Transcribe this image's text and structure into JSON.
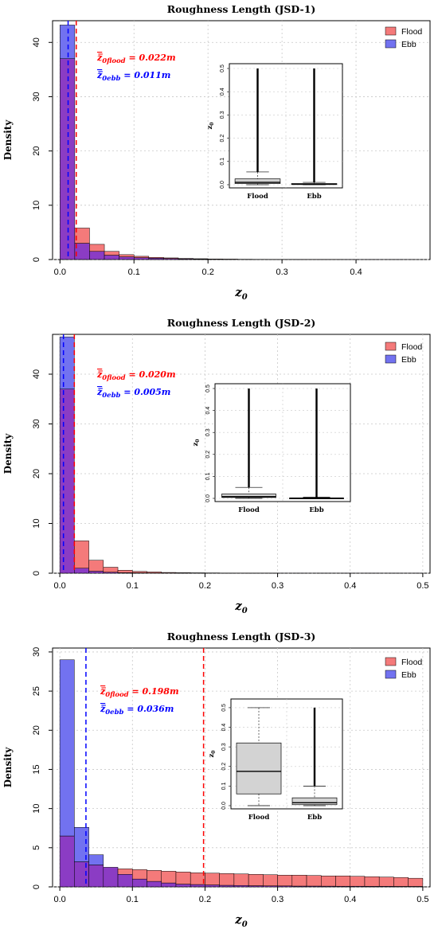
{
  "colors": {
    "flood_fill": "#f47a7a",
    "ebb_fill": "#7272f0",
    "overlap_fill": "#8b3cc4",
    "flood_line": "#ff0000",
    "ebb_line": "#0000ff",
    "grid": "#c8c8c8",
    "box_fill": "#d3d3d3"
  },
  "chart_data": [
    {
      "type": "bar",
      "title": "Roughness Length (JSD-1)",
      "xlabel": "z",
      "xlabel_sub": "0",
      "ylabel": "Density",
      "xlim": [
        -0.01,
        0.5
      ],
      "ylim": [
        0,
        44
      ],
      "xticks": [
        0.0,
        0.1,
        0.2,
        0.3,
        0.4
      ],
      "xtick_labels": [
        "0.0",
        "0.1",
        "0.2",
        "0.3",
        "0.4"
      ],
      "yticks": [
        0,
        10,
        20,
        30,
        40
      ],
      "ytick_labels": [
        "0",
        "10",
        "20",
        "30",
        "40"
      ],
      "grid": true,
      "legend_position": "top-right",
      "bin_width": 0.02,
      "series": [
        {
          "name": "Flood",
          "values": [
            37,
            5.8,
            2.8,
            1.5,
            0.9,
            0.6,
            0.4,
            0.3,
            0.2,
            0.15,
            0.1,
            0.08,
            0.05,
            0.04,
            0.03,
            0.03,
            0.02,
            0.02,
            0.02,
            0.01,
            0.01,
            0.01,
            0.01,
            0.01
          ]
        },
        {
          "name": "Ebb",
          "values": [
            43.2,
            3.0,
            1.5,
            0.8,
            0.5,
            0.35,
            0.25,
            0.18,
            0.12,
            0.08,
            0.06,
            0.05,
            0.04,
            0.03,
            0.02,
            0.02,
            0.01,
            0.01,
            0.01,
            0.01,
            0.01,
            0.01,
            0.01,
            0.01
          ]
        }
      ],
      "mean_lines": [
        {
          "series": "Flood",
          "x": 0.022
        },
        {
          "series": "Ebb",
          "x": 0.011
        }
      ],
      "annotations": [
        {
          "series": "Flood",
          "symbol": "z̅",
          "sub": "0flood",
          "text": " = 0.022m"
        },
        {
          "series": "Ebb",
          "symbol": "z̅",
          "sub": "0ebb",
          "text": " = 0.011m"
        }
      ],
      "inset": {
        "type": "box",
        "ylabel": "z",
        "ylabel_sub": "0",
        "categories": [
          "Flood",
          "Ebb"
        ],
        "ylim": [
          0,
          0.5
        ],
        "yticks": [
          0.0,
          0.1,
          0.2,
          0.3,
          0.4,
          0.5
        ],
        "ytick_labels": [
          "0.0",
          "0.1",
          "0.2",
          "0.3",
          "0.4",
          "0.5"
        ],
        "boxes": [
          {
            "q1": 0.005,
            "median": 0.01,
            "q3": 0.025,
            "whisker_low": 0.0,
            "whisker_high": 0.055,
            "outliers_from": 0.055,
            "outliers_to": 0.5
          },
          {
            "q1": 0.001,
            "median": 0.002,
            "q3": 0.005,
            "whisker_low": 0.0,
            "whisker_high": 0.01,
            "outliers_from": 0.01,
            "outliers_to": 0.5
          }
        ]
      }
    },
    {
      "type": "bar",
      "title": "Roughness Length (JSD-2)",
      "xlabel": "z",
      "xlabel_sub": "0",
      "ylabel": "Density",
      "xlim": [
        -0.01,
        0.51
      ],
      "ylim": [
        0,
        48
      ],
      "xticks": [
        0.0,
        0.1,
        0.2,
        0.3,
        0.4,
        0.5
      ],
      "xtick_labels": [
        "0.0",
        "0.1",
        "0.2",
        "0.3",
        "0.4",
        "0.5"
      ],
      "yticks": [
        0,
        10,
        20,
        30,
        40
      ],
      "ytick_labels": [
        "0",
        "10",
        "20",
        "30",
        "40"
      ],
      "grid": true,
      "legend_position": "top-right",
      "bin_width": 0.02,
      "series": [
        {
          "name": "Flood",
          "values": [
            37,
            6.5,
            2.6,
            1.2,
            0.6,
            0.35,
            0.25,
            0.15,
            0.1,
            0.08,
            0.06,
            0.04,
            0.03,
            0.02,
            0.02,
            0.01,
            0.01,
            0.01,
            0.01,
            0.01,
            0.01,
            0.01,
            0.01,
            0.01,
            0.01
          ]
        },
        {
          "name": "Ebb",
          "values": [
            47.5,
            1.0,
            0.4,
            0.2,
            0.1,
            0.08,
            0.05,
            0.04,
            0.03,
            0.02,
            0.02,
            0.01,
            0.01,
            0.01,
            0.01,
            0.01,
            0.01,
            0.01,
            0.01,
            0.01,
            0.01,
            0.01,
            0.01,
            0.01,
            0.01
          ]
        }
      ],
      "mean_lines": [
        {
          "series": "Flood",
          "x": 0.02
        },
        {
          "series": "Ebb",
          "x": 0.005
        }
      ],
      "annotations": [
        {
          "series": "Flood",
          "symbol": "z̅",
          "sub": "0flood",
          "text": " = 0.020m"
        },
        {
          "series": "Ebb",
          "symbol": "z̅",
          "sub": "0ebb",
          "text": " = 0.005m"
        }
      ],
      "inset": {
        "type": "box",
        "ylabel": "z",
        "ylabel_sub": "0",
        "categories": [
          "Flood",
          "Ebb"
        ],
        "ylim": [
          0,
          0.5
        ],
        "yticks": [
          0.0,
          0.1,
          0.2,
          0.3,
          0.4,
          0.5
        ],
        "ytick_labels": [
          "0.0",
          "0.1",
          "0.2",
          "0.3",
          "0.4",
          "0.5"
        ],
        "boxes": [
          {
            "q1": 0.004,
            "median": 0.008,
            "q3": 0.02,
            "whisker_low": 0.0,
            "whisker_high": 0.05,
            "outliers_from": 0.05,
            "outliers_to": 0.5
          },
          {
            "q1": 0.0,
            "median": 0.001,
            "q3": 0.002,
            "whisker_low": 0.0,
            "whisker_high": 0.005,
            "outliers_from": 0.005,
            "outliers_to": 0.5
          }
        ]
      }
    },
    {
      "type": "bar",
      "title": "Roughness Length (JSD-3)",
      "xlabel": "z",
      "xlabel_sub": "0",
      "ylabel": "Density",
      "xlim": [
        -0.01,
        0.51
      ],
      "ylim": [
        0,
        30.5
      ],
      "xticks": [
        0.0,
        0.1,
        0.2,
        0.3,
        0.4,
        0.5
      ],
      "xtick_labels": [
        "0.0",
        "0.1",
        "0.2",
        "0.3",
        "0.4",
        "0.5"
      ],
      "yticks": [
        0,
        5,
        10,
        15,
        20,
        25,
        30
      ],
      "ytick_labels": [
        "0",
        "5",
        "10",
        "15",
        "20",
        "25",
        "30"
      ],
      "grid": true,
      "legend_position": "top-right",
      "bin_width": 0.02,
      "series": [
        {
          "name": "Flood",
          "values": [
            6.5,
            3.2,
            2.8,
            2.5,
            2.3,
            2.2,
            2.1,
            2.0,
            1.9,
            1.8,
            1.75,
            1.7,
            1.65,
            1.6,
            1.55,
            1.5,
            1.5,
            1.45,
            1.4,
            1.4,
            1.35,
            1.3,
            1.25,
            1.2,
            1.1
          ]
        },
        {
          "name": "Ebb",
          "values": [
            29.0,
            7.6,
            4.1,
            2.5,
            1.6,
            1.0,
            0.7,
            0.5,
            0.35,
            0.3,
            0.25,
            0.2,
            0.18,
            0.15,
            0.13,
            0.12,
            0.1,
            0.1,
            0.09,
            0.08,
            0.08,
            0.07,
            0.07,
            0.06,
            0.06
          ]
        }
      ],
      "mean_lines": [
        {
          "series": "Flood",
          "x": 0.198
        },
        {
          "series": "Ebb",
          "x": 0.036
        }
      ],
      "annotations": [
        {
          "series": "Flood",
          "symbol": "z̅",
          "sub": "0flood",
          "text": " = 0.198m"
        },
        {
          "series": "Ebb",
          "symbol": "z̅",
          "sub": "0ebb",
          "text": " = 0.036m"
        }
      ],
      "inset": {
        "type": "box",
        "ylabel": "z",
        "ylabel_sub": "0",
        "categories": [
          "Flood",
          "Ebb"
        ],
        "ylim": [
          0,
          0.52
        ],
        "yticks": [
          0.0,
          0.1,
          0.2,
          0.3,
          0.4,
          0.5
        ],
        "ytick_labels": [
          "0.0",
          "0.1",
          "0.2",
          "0.3",
          "0.4",
          "0.5"
        ],
        "boxes": [
          {
            "q1": 0.06,
            "median": 0.175,
            "q3": 0.32,
            "whisker_low": 0.0,
            "whisker_high": 0.5,
            "outliers_from": null,
            "outliers_to": null
          },
          {
            "q1": 0.005,
            "median": 0.015,
            "q3": 0.04,
            "whisker_low": 0.0,
            "whisker_high": 0.1,
            "outliers_from": 0.1,
            "outliers_to": 0.5
          }
        ]
      }
    }
  ]
}
